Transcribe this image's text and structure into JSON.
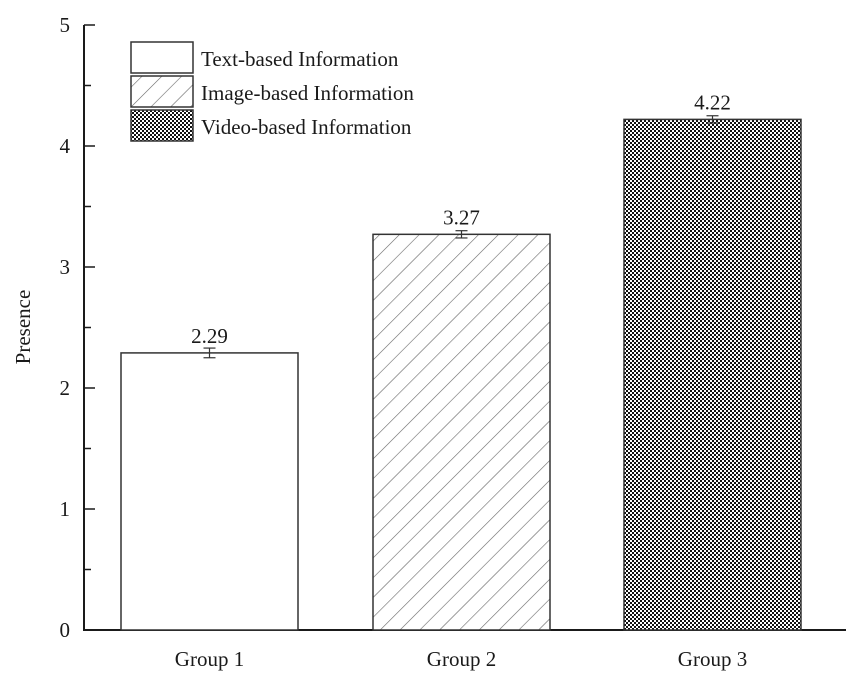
{
  "chart_data": {
    "type": "bar",
    "title": "",
    "xlabel": "",
    "ylabel": "Presence",
    "ylim": [
      0,
      5
    ],
    "yticks": [
      0,
      1,
      2,
      3,
      4,
      5
    ],
    "minor_yticks": [
      0.5,
      1.5,
      2.5,
      3.5,
      4.5
    ],
    "grid": false,
    "legend_position": "upper left",
    "categories": [
      "Group 1",
      "Group 2",
      "Group 3"
    ],
    "values": [
      2.29,
      3.27,
      4.22
    ],
    "error": [
      0.04,
      0.03,
      0.03
    ],
    "value_labels": [
      "2.29",
      "3.27",
      "4.22"
    ],
    "series_legend": [
      {
        "name": "Text-based Information",
        "fill": "white"
      },
      {
        "name": "Image-based Information",
        "fill": "diagonal-hatch"
      },
      {
        "name": "Video-based Information",
        "fill": "checkerboard"
      }
    ]
  },
  "colors": {
    "ink": "#1a1a1a",
    "hatch": "#555555",
    "background": "#ffffff"
  }
}
